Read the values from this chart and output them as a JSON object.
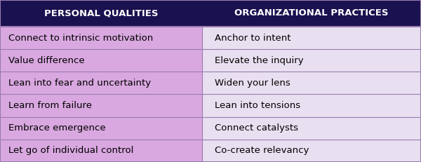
{
  "col1_header": "PERSONAL QUALITIES",
  "col2_header": "ORGANIZATIONAL PRACTICES",
  "col1_data": [
    "Connect to intrinsic motivation",
    "Value difference",
    "Lean into fear and uncertainty",
    "Learn from failure",
    "Embrace emergence",
    "Let go of individual control"
  ],
  "col2_data": [
    "Anchor to intent",
    "Elevate the inquiry",
    "Widen your lens",
    "Lean into tensions",
    "Connect catalysts",
    "Co-create relevancy"
  ],
  "header_bg": "#1a1150",
  "header_text": "#ffffff",
  "col1_bg": "#d9a8e0",
  "col2_bg": "#e8e0f0",
  "border_color": "#9a7ab0",
  "row_line_color": "#9a7ab0",
  "header_fontsize": 9.5,
  "cell_fontsize": 9.5,
  "col_split": 0.48,
  "fig_width": 6.0,
  "fig_height": 2.31
}
